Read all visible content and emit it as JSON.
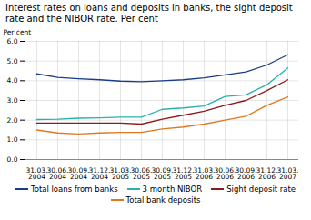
{
  "chart_data": {
    "type": "line",
    "title": "Interest rates on loans and deposits in banks, the sight deposit rate and the NIBOR rate. Per cent",
    "ylabel": "Per cent",
    "categories": [
      "31.03.\n2004",
      "30.06.\n2004",
      "30.09.\n2004",
      "31.12.\n2004",
      "31.03.\n2005",
      "30.06.\n2005",
      "30.09.\n2005",
      "31.12.\n2005",
      "31.03.\n2006",
      "30.06.\n2006",
      "30.09.\n2006",
      "31.12.\n2006",
      "31.03.\n2007"
    ],
    "series": [
      {
        "name": "Total loans from banks",
        "color": "#1a3a8a",
        "values": [
          4.35,
          4.17,
          4.1,
          4.05,
          3.98,
          3.95,
          4.0,
          4.05,
          4.15,
          4.3,
          4.45,
          4.8,
          5.32
        ]
      },
      {
        "name": "3 month NIBOR",
        "color": "#2ab0b0",
        "values": [
          2.03,
          2.05,
          2.1,
          2.12,
          2.15,
          2.15,
          2.55,
          2.62,
          2.72,
          3.2,
          3.28,
          3.8,
          4.65
        ]
      },
      {
        "name": "Sight deposit rate",
        "color": "#8b1a1a",
        "values": [
          1.85,
          1.85,
          1.85,
          1.85,
          1.85,
          1.8,
          2.05,
          2.25,
          2.45,
          2.75,
          3.0,
          3.5,
          4.05
        ]
      },
      {
        "name": "Total bank deposits",
        "color": "#e07820",
        "values": [
          1.5,
          1.35,
          1.3,
          1.35,
          1.38,
          1.38,
          1.55,
          1.65,
          1.8,
          2.0,
          2.2,
          2.75,
          3.18
        ]
      }
    ],
    "ylim": [
      0,
      6
    ],
    "yticks": [
      0,
      1,
      2,
      3,
      4,
      5,
      6
    ],
    "grid": true,
    "legend": "bottom"
  }
}
